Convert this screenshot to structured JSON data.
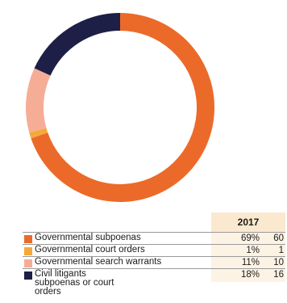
{
  "chart_data": {
    "type": "pie",
    "donut": true,
    "year": "2017",
    "categories": [
      "Governmental subpoenas",
      "Governmental court orders",
      "Governmental search warrants",
      "Civil litigants subpoenas or court orders"
    ],
    "values": [
      69,
      1,
      11,
      18
    ],
    "percent_labels": [
      "69%",
      "1%",
      "11%",
      "18%"
    ],
    "counts": [
      "60",
      "1",
      "10",
      "16"
    ],
    "colors": [
      "#ec6a29",
      "#f5a93a",
      "#f6ad96",
      "#1e1f46"
    ]
  }
}
